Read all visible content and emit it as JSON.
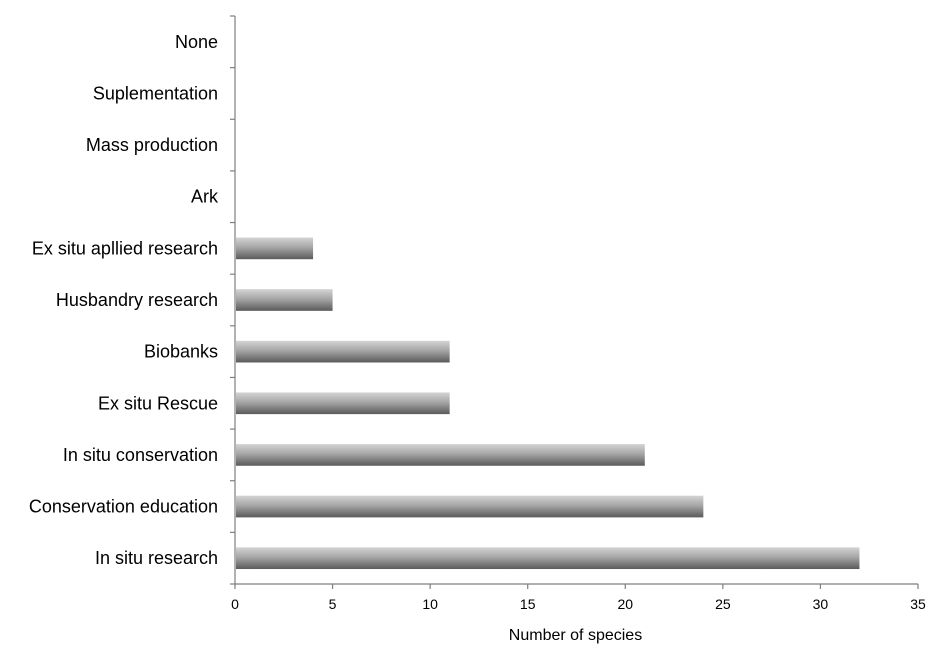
{
  "chart_data": {
    "type": "bar",
    "orientation": "horizontal",
    "title": "",
    "xlabel": "Number of species",
    "ylabel": "",
    "xlim": [
      0,
      35
    ],
    "x_ticks": [
      0,
      5,
      10,
      15,
      20,
      25,
      30,
      35
    ],
    "grid": false,
    "legend": "none",
    "categories": [
      "None",
      "Suplementation",
      "Mass production",
      "Ark",
      "Ex situ apllied research",
      "Husbandry research",
      "Biobanks",
      "Ex situ Rescue",
      "In situ conservation",
      "Conservation education",
      "In situ research"
    ],
    "values": [
      0,
      0,
      0,
      0,
      4,
      5,
      11,
      11,
      21,
      24,
      32
    ],
    "colors": {
      "bar_light": "#d4d4d4",
      "bar_mid": "#a6a6a6",
      "bar_dark": "#5a5a5a",
      "axis": "#7f7f7f"
    }
  }
}
